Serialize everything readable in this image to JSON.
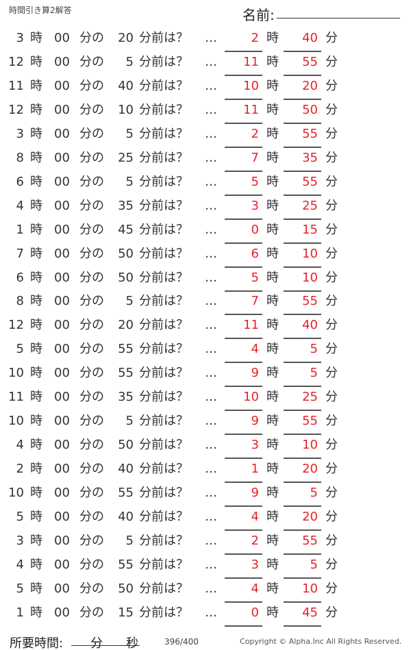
{
  "header": {
    "title": "時間引き算2解答",
    "name_label": "名前:"
  },
  "labels": {
    "hour": "時",
    "zero_min": "00",
    "min_of": "分の",
    "question": "分前は？",
    "dots": "…",
    "min": "分"
  },
  "answer_color": "#e8202a",
  "rows": [
    {
      "h": "3",
      "m": "20",
      "ah": "2",
      "am": "40"
    },
    {
      "h": "12",
      "m": "5",
      "ah": "11",
      "am": "55"
    },
    {
      "h": "11",
      "m": "40",
      "ah": "10",
      "am": "20"
    },
    {
      "h": "12",
      "m": "10",
      "ah": "11",
      "am": "50"
    },
    {
      "h": "3",
      "m": "5",
      "ah": "2",
      "am": "55"
    },
    {
      "h": "8",
      "m": "25",
      "ah": "7",
      "am": "35"
    },
    {
      "h": "6",
      "m": "5",
      "ah": "5",
      "am": "55"
    },
    {
      "h": "4",
      "m": "35",
      "ah": "3",
      "am": "25"
    },
    {
      "h": "1",
      "m": "45",
      "ah": "0",
      "am": "15"
    },
    {
      "h": "7",
      "m": "50",
      "ah": "6",
      "am": "10"
    },
    {
      "h": "6",
      "m": "50",
      "ah": "5",
      "am": "10"
    },
    {
      "h": "8",
      "m": "5",
      "ah": "7",
      "am": "55"
    },
    {
      "h": "12",
      "m": "20",
      "ah": "11",
      "am": "40"
    },
    {
      "h": "5",
      "m": "55",
      "ah": "4",
      "am": "5"
    },
    {
      "h": "10",
      "m": "55",
      "ah": "9",
      "am": "5"
    },
    {
      "h": "11",
      "m": "35",
      "ah": "10",
      "am": "25"
    },
    {
      "h": "10",
      "m": "5",
      "ah": "9",
      "am": "55"
    },
    {
      "h": "4",
      "m": "50",
      "ah": "3",
      "am": "10"
    },
    {
      "h": "2",
      "m": "40",
      "ah": "1",
      "am": "20"
    },
    {
      "h": "10",
      "m": "55",
      "ah": "9",
      "am": "5"
    },
    {
      "h": "5",
      "m": "40",
      "ah": "4",
      "am": "20"
    },
    {
      "h": "3",
      "m": "5",
      "ah": "2",
      "am": "55"
    },
    {
      "h": "4",
      "m": "55",
      "ah": "3",
      "am": "5"
    },
    {
      "h": "5",
      "m": "50",
      "ah": "4",
      "am": "10"
    },
    {
      "h": "1",
      "m": "15",
      "ah": "0",
      "am": "45"
    }
  ],
  "footer": {
    "time_label": "所要時間:",
    "min": "分",
    "sec": "秒",
    "page": "396/400",
    "copyright": "Copyright ©  Alpha.Inc All Rights Reserved."
  }
}
